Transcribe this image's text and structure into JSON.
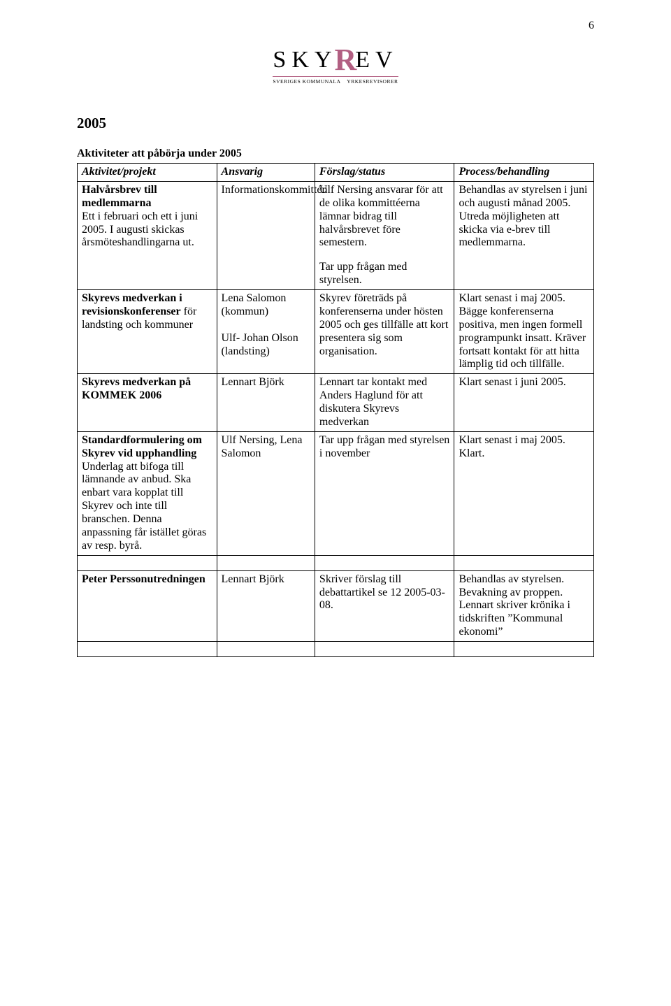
{
  "page_number": "6",
  "logo": {
    "text_left": "SKY",
    "text_r": "R",
    "text_right": "EV",
    "sub_left": "SVERIGES KOMMUNALA",
    "sub_right": "YRKESREVISORER",
    "color_r": "#b25f82",
    "underline_color": "#b25f82"
  },
  "year_heading": "2005",
  "section_heading": "Aktiviteter att påbörja under 2005",
  "table": {
    "headers": [
      "Aktivitet/projekt",
      "Ansvarig",
      "Förslag/status",
      "Process/behandling"
    ],
    "rows": [
      {
        "c1_bold": "Halvårsbrev till medlemmarna",
        "c1_rest": "Ett i februari och ett i juni 2005. I augusti skickas årsmöteshandlingarna ut.",
        "c2": "Informationskommittén",
        "c3a": "Ulf Nersing ansvarar för att de olika kommittéerna lämnar bidrag till halvårsbrevet före semestern.",
        "c3b": "Tar upp frågan med styrelsen.",
        "c4": "Behandlas av styrelsen i juni och augusti månad 2005.\nUtreda möjligheten att skicka via e-brev till medlemmarna."
      },
      {
        "c1_bold": "Skyrevs medverkan i revisionskonferenser",
        "c1_rest": " för landsting och kommuner",
        "c2": "Lena Salomon (kommun)\n\nUlf- Johan Olson (landsting)",
        "c3a": "Skyrev företräds på konferenserna under hösten 2005 och ges tillfälle att kort presentera sig som organisation.",
        "c4": "Klart senast i maj 2005. Bägge konferenserna positiva, men ingen formell programpunkt insatt. Kräver fortsatt kontakt för att hitta lämplig tid och tillfälle."
      },
      {
        "c1_bold": "Skyrevs medverkan på KOMMEK 2006",
        "c1_rest": "",
        "c2": "Lennart Björk",
        "c3a": "Lennart tar kontakt med Anders Haglund för att diskutera Skyrevs medverkan",
        "c4": "Klart senast i juni 2005."
      },
      {
        "c1_bold": "Standardformulering om Skyrev vid upphandling",
        "c1_rest": "Underlag att bifoga till lämnande av anbud. Ska enbart vara kopplat till Skyrev och inte till branschen. Denna anpassning får istället göras av resp. byrå.",
        "c2": "Ulf Nersing, Lena Salomon",
        "c3a": "Tar upp frågan med styrelsen i november",
        "c4": "Klart senast i maj 2005. Klart."
      },
      {
        "c1_bold": "Peter Perssonutredningen",
        "c1_rest": "",
        "c2": "Lennart Björk",
        "c3a": "Skriver förslag till debattartikel se 12 2005-03-08.",
        "c4": "Behandlas av styrelsen. Bevakning av proppen. Lennart skriver krönika i tidskriften ”Kommunal ekonomi”"
      }
    ]
  }
}
